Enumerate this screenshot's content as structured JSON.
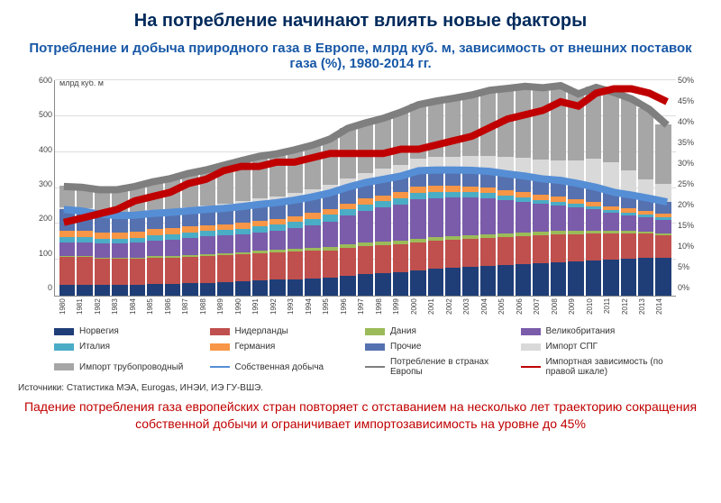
{
  "title": "На потребление начинают влиять новые факторы",
  "subtitle": "Потребление и добыча природного газа в Европе, млрд куб. м, зависимость от внешних поставок газа (%), 1980-2014 гг.",
  "unit_label": "млрд куб. м",
  "chart": {
    "type": "stacked-bar+line",
    "background": "#ffffff",
    "grid_color": "#dddddd",
    "axis_color": "#888888",
    "y_left": {
      "min": 0,
      "max": 600,
      "step": 100,
      "ticks": [
        "0",
        "100",
        "200",
        "300",
        "400",
        "500",
        "600"
      ]
    },
    "y_right": {
      "min": 0,
      "max": 50,
      "step": 5,
      "ticks": [
        "0%",
        "5%",
        "10%",
        "15%",
        "20%",
        "25%",
        "30%",
        "35%",
        "40%",
        "45%",
        "50%"
      ]
    },
    "years": [
      "1980",
      "1981",
      "1982",
      "1983",
      "1984",
      "1985",
      "1986",
      "1987",
      "1988",
      "1989",
      "1990",
      "1991",
      "1992",
      "1993",
      "1994",
      "1995",
      "1996",
      "1997",
      "1998",
      "1999",
      "2000",
      "2001",
      "2002",
      "2003",
      "2004",
      "2005",
      "2006",
      "2007",
      "2008",
      "2009",
      "2010",
      "2011",
      "2012",
      "2013",
      "2014"
    ],
    "stack_series": [
      {
        "key": "norway",
        "label": "Норвегия",
        "color": "#1f3e78",
        "values": [
          30,
          30,
          30,
          30,
          30,
          32,
          32,
          34,
          36,
          38,
          40,
          42,
          44,
          46,
          48,
          50,
          55,
          60,
          62,
          65,
          70,
          75,
          78,
          80,
          82,
          85,
          88,
          90,
          92,
          95,
          98,
          100,
          102,
          104,
          106
        ]
      },
      {
        "key": "netherlands",
        "label": "Нидерланды",
        "color": "#c0504d",
        "values": [
          78,
          78,
          72,
          72,
          72,
          74,
          74,
          74,
          74,
          74,
          74,
          76,
          76,
          76,
          76,
          76,
          78,
          78,
          78,
          78,
          78,
          78,
          78,
          78,
          78,
          78,
          78,
          78,
          78,
          76,
          74,
          72,
          70,
          68,
          62
        ]
      },
      {
        "key": "denmark",
        "label": "Дания",
        "color": "#9bbb59",
        "values": [
          2,
          2,
          2,
          2,
          3,
          3,
          4,
          4,
          5,
          5,
          6,
          6,
          7,
          7,
          8,
          8,
          9,
          9,
          10,
          10,
          10,
          10,
          10,
          10,
          10,
          10,
          10,
          10,
          9,
          9,
          8,
          7,
          7,
          6,
          5
        ]
      },
      {
        "key": "uk",
        "label": "Великобритания",
        "color": "#7a5caa",
        "values": [
          38,
          38,
          40,
          40,
          42,
          44,
          46,
          48,
          50,
          50,
          50,
          52,
          54,
          58,
          64,
          72,
          80,
          88,
          94,
          100,
          110,
          108,
          106,
          104,
          100,
          92,
          84,
          76,
          72,
          66,
          60,
          50,
          44,
          40,
          38
        ]
      },
      {
        "key": "italy",
        "label": "Италия",
        "color": "#4bacc6",
        "values": [
          14,
          14,
          14,
          14,
          14,
          15,
          15,
          15,
          15,
          15,
          16,
          16,
          16,
          17,
          17,
          18,
          18,
          18,
          18,
          18,
          18,
          17,
          16,
          15,
          14,
          13,
          12,
          11,
          10,
          9,
          8,
          8,
          8,
          7,
          7
        ]
      },
      {
        "key": "germany",
        "label": "Германия",
        "color": "#f79646",
        "values": [
          18,
          18,
          17,
          17,
          17,
          17,
          17,
          17,
          16,
          16,
          16,
          16,
          16,
          16,
          16,
          16,
          16,
          16,
          16,
          16,
          16,
          16,
          16,
          16,
          16,
          15,
          15,
          14,
          14,
          13,
          12,
          11,
          11,
          10,
          9
        ]
      },
      {
        "key": "other",
        "label": "Прочие",
        "color": "#5571af",
        "values": [
          60,
          56,
          52,
          48,
          46,
          44,
          44,
          44,
          44,
          45,
          46,
          46,
          46,
          46,
          46,
          46,
          46,
          46,
          46,
          46,
          46,
          46,
          46,
          46,
          46,
          46,
          46,
          46,
          46,
          44,
          42,
          40,
          38,
          36,
          34
        ]
      },
      {
        "key": "lng",
        "label": "Импорт СПГ",
        "color": "#d9d9d9",
        "values": [
          6,
          6,
          6,
          6,
          8,
          8,
          8,
          10,
          10,
          12,
          14,
          16,
          16,
          18,
          20,
          22,
          24,
          26,
          28,
          30,
          32,
          34,
          36,
          38,
          42,
          46,
          50,
          52,
          54,
          64,
          78,
          82,
          68,
          52,
          48
        ]
      },
      {
        "key": "pipe",
        "label": "Импорт трубопроводный",
        "color": "#a6a6a6",
        "values": [
          58,
          60,
          62,
          66,
          72,
          80,
          86,
          94,
          100,
          108,
          114,
          118,
          120,
          122,
          124,
          128,
          140,
          140,
          142,
          148,
          152,
          158,
          164,
          172,
          184,
          192,
          200,
          202,
          210,
          186,
          200,
          196,
          200,
          196,
          166
        ]
      }
    ],
    "lines": [
      {
        "key": "production",
        "label": "Собственная добыча",
        "color": "#558ed5",
        "width": 2,
        "axis": "left",
        "values": [
          240,
          236,
          227,
          223,
          224,
          229,
          232,
          236,
          240,
          243,
          248,
          254,
          259,
          266,
          275,
          286,
          302,
          315,
          324,
          333,
          348,
          350,
          350,
          349,
          346,
          339,
          333,
          325,
          321,
          312,
          302,
          288,
          280,
          271,
          261
        ]
      },
      {
        "key": "consumption",
        "label": "Потребление в странах Европы",
        "color": "#7f7f7f",
        "width": 2,
        "axis": "left",
        "values": [
          304,
          302,
          295,
          295,
          304,
          317,
          326,
          340,
          350,
          363,
          376,
          388,
          395,
          406,
          419,
          436,
          466,
          481,
          494,
          511,
          532,
          542,
          550,
          559,
          572,
          577,
          583,
          579,
          585,
          562,
          580,
          566,
          548,
          519,
          475
        ]
      },
      {
        "key": "import_dep",
        "label": "Импортная зависимость (по правой шкале)",
        "color": "#c00000",
        "width": 2,
        "axis": "right",
        "values": [
          17,
          18,
          19,
          20,
          22,
          23,
          24,
          26,
          27,
          29,
          30,
          30,
          31,
          31,
          32,
          33,
          33,
          33,
          33,
          34,
          34,
          35,
          36,
          37,
          39,
          41,
          42,
          43,
          45,
          44,
          47,
          48,
          48,
          47,
          45
        ]
      }
    ]
  },
  "legend_items": [
    {
      "label": "Норвегия",
      "color": "#1f3e78",
      "type": "box"
    },
    {
      "label": "Нидерланды",
      "color": "#c0504d",
      "type": "box"
    },
    {
      "label": "Дания",
      "color": "#9bbb59",
      "type": "box"
    },
    {
      "label": "Великобритания",
      "color": "#7a5caa",
      "type": "box"
    },
    {
      "label": "Италия",
      "color": "#4bacc6",
      "type": "box"
    },
    {
      "label": "Германия",
      "color": "#f79646",
      "type": "box"
    },
    {
      "label": "Прочие",
      "color": "#5571af",
      "type": "box"
    },
    {
      "label": "Импорт СПГ",
      "color": "#d9d9d9",
      "type": "box"
    },
    {
      "label": "Импорт трубопроводный",
      "color": "#a6a6a6",
      "type": "box"
    },
    {
      "label": "Собственная добыча",
      "color": "#558ed5",
      "type": "line"
    },
    {
      "label": "Потребление в странах Европы",
      "color": "#7f7f7f",
      "type": "line"
    },
    {
      "label": "Импортная зависимость (по правой шкале)",
      "color": "#c00000",
      "type": "line"
    }
  ],
  "source": "Источники: Статистика МЭА, Eurogas, ИНЭИ, ИЭ ГУ-ВШЭ.",
  "conclusion": "Падение потребления газа европейских стран повторяет с отставанием на несколько лет траекторию сокращения собственной добычи и ограничивает импортозависимость на уровне до 45%"
}
